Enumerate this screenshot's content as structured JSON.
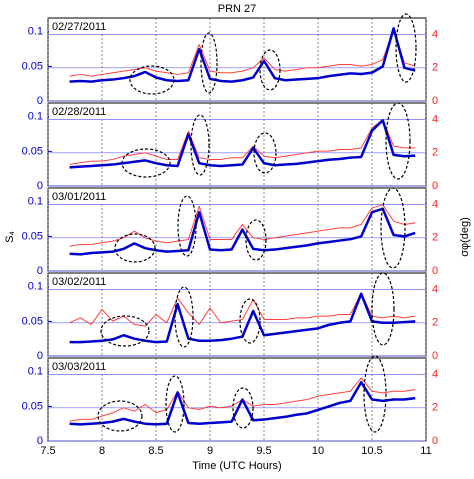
{
  "title": "PRN 27",
  "xlabel": "Time (UTC Hours)",
  "ylabel": "S₄",
  "y2label": "σφ(deg)",
  "chart_data": [
    {
      "type": "line",
      "annotation": "02/27/2011",
      "x": [
        7.7,
        7.8,
        7.9,
        8.0,
        8.1,
        8.2,
        8.3,
        8.4,
        8.5,
        8.6,
        8.7,
        8.8,
        8.9,
        9.0,
        9.1,
        9.2,
        9.3,
        9.4,
        9.5,
        9.6,
        9.7,
        9.8,
        9.9,
        10.0,
        10.1,
        10.2,
        10.3,
        10.4,
        10.5,
        10.6,
        10.7,
        10.8,
        10.9
      ],
      "series": [
        {
          "color": "#ff4040",
          "axis": "y2",
          "values": [
            1.5,
            1.6,
            1.5,
            1.6,
            1.7,
            1.8,
            1.9,
            2.0,
            1.8,
            1.7,
            1.6,
            1.7,
            3.4,
            1.8,
            1.7,
            1.7,
            1.8,
            2.0,
            2.6,
            1.9,
            1.8,
            1.9,
            2.0,
            2.0,
            2.1,
            2.2,
            2.2,
            2.1,
            2.2,
            2.5,
            4.3,
            2.3,
            2.1
          ]
        },
        {
          "color": "#0000cc",
          "values": [
            0.028,
            0.029,
            0.028,
            0.03,
            0.031,
            0.033,
            0.036,
            0.042,
            0.034,
            0.03,
            0.029,
            0.03,
            0.075,
            0.032,
            0.029,
            0.028,
            0.03,
            0.034,
            0.058,
            0.033,
            0.03,
            0.031,
            0.032,
            0.033,
            0.036,
            0.038,
            0.04,
            0.039,
            0.041,
            0.05,
            0.105,
            0.048,
            0.044
          ]
        }
      ],
      "xlim": [
        7.5,
        11
      ],
      "xticks": [
        7.5,
        8,
        8.5,
        9,
        9.5,
        10,
        10.5,
        11
      ],
      "ylim": [
        0,
        0.12
      ],
      "yticks": [
        0,
        0.05,
        0.1
      ],
      "y2lim": [
        0,
        5
      ],
      "y2ticks": [
        0,
        2,
        4
      ]
    },
    {
      "type": "line",
      "annotation": "02/28/2011",
      "x": [
        7.7,
        7.8,
        7.9,
        8.0,
        8.1,
        8.2,
        8.3,
        8.4,
        8.5,
        8.6,
        8.7,
        8.8,
        8.9,
        9.0,
        9.1,
        9.2,
        9.3,
        9.4,
        9.5,
        9.6,
        9.7,
        9.8,
        9.9,
        10.0,
        10.1,
        10.2,
        10.3,
        10.4,
        10.5,
        10.6,
        10.7,
        10.8,
        10.9
      ],
      "series": [
        {
          "color": "#ff4040",
          "axis": "y2",
          "values": [
            1.3,
            1.4,
            1.5,
            1.5,
            1.6,
            1.8,
            1.9,
            2.0,
            1.8,
            1.6,
            1.6,
            3.3,
            1.7,
            1.6,
            1.6,
            1.7,
            1.7,
            2.4,
            1.8,
            1.7,
            1.8,
            1.9,
            2.0,
            2.1,
            2.1,
            2.2,
            2.2,
            2.3,
            3.5,
            4.0,
            2.4,
            2.3,
            2.3
          ]
        },
        {
          "color": "#0000cc",
          "values": [
            0.027,
            0.028,
            0.029,
            0.03,
            0.031,
            0.033,
            0.035,
            0.037,
            0.033,
            0.03,
            0.029,
            0.075,
            0.033,
            0.03,
            0.029,
            0.03,
            0.031,
            0.055,
            0.033,
            0.03,
            0.031,
            0.032,
            0.034,
            0.036,
            0.038,
            0.039,
            0.041,
            0.042,
            0.08,
            0.095,
            0.045,
            0.043,
            0.044
          ]
        }
      ],
      "xlim": [
        7.5,
        11
      ],
      "xticks": [
        7.5,
        8,
        8.5,
        9,
        9.5,
        10,
        10.5,
        11
      ],
      "ylim": [
        0,
        0.12
      ],
      "yticks": [
        0,
        0.05,
        0.1
      ],
      "y2lim": [
        0,
        5
      ],
      "y2ticks": [
        0,
        2,
        4
      ]
    },
    {
      "type": "line",
      "annotation": "03/01/2011",
      "x": [
        7.7,
        7.8,
        7.9,
        8.0,
        8.1,
        8.2,
        8.3,
        8.4,
        8.5,
        8.6,
        8.7,
        8.8,
        8.9,
        9.0,
        9.1,
        9.2,
        9.3,
        9.4,
        9.5,
        9.6,
        9.7,
        9.8,
        9.9,
        10.0,
        10.1,
        10.2,
        10.3,
        10.4,
        10.5,
        10.6,
        10.7,
        10.8,
        10.9
      ],
      "series": [
        {
          "color": "#ff4040",
          "axis": "y2",
          "values": [
            1.5,
            1.6,
            1.6,
            1.7,
            1.8,
            2.0,
            2.4,
            2.0,
            1.8,
            1.7,
            1.8,
            1.9,
            3.9,
            1.9,
            1.9,
            1.9,
            2.8,
            2.0,
            1.9,
            2.0,
            2.1,
            2.2,
            2.3,
            2.4,
            2.5,
            2.6,
            2.6,
            2.8,
            3.8,
            4.0,
            3.0,
            2.8,
            2.9
          ]
        },
        {
          "color": "#0000cc",
          "values": [
            0.025,
            0.024,
            0.026,
            0.027,
            0.028,
            0.032,
            0.04,
            0.033,
            0.03,
            0.028,
            0.029,
            0.03,
            0.085,
            0.031,
            0.03,
            0.031,
            0.06,
            0.032,
            0.03,
            0.031,
            0.033,
            0.035,
            0.037,
            0.04,
            0.042,
            0.044,
            0.046,
            0.05,
            0.085,
            0.09,
            0.052,
            0.05,
            0.055
          ]
        }
      ],
      "xlim": [
        7.5,
        11
      ],
      "xticks": [
        7.5,
        8,
        8.5,
        9,
        9.5,
        10,
        10.5,
        11
      ],
      "ylim": [
        0,
        0.12
      ],
      "yticks": [
        0,
        0.05,
        0.1
      ],
      "y2lim": [
        0,
        5
      ],
      "y2ticks": [
        0,
        2,
        4
      ]
    },
    {
      "type": "line",
      "annotation": "03/02/2011",
      "x": [
        7.7,
        7.8,
        7.9,
        8.0,
        8.1,
        8.2,
        8.3,
        8.4,
        8.5,
        8.6,
        8.7,
        8.8,
        8.9,
        9.0,
        9.1,
        9.2,
        9.3,
        9.4,
        9.5,
        9.6,
        9.7,
        9.8,
        9.9,
        10.0,
        10.1,
        10.2,
        10.3,
        10.4,
        10.5,
        10.6,
        10.7,
        10.8,
        10.9
      ],
      "series": [
        {
          "color": "#ff4040",
          "axis": "y2",
          "values": [
            2.0,
            2.3,
            1.9,
            2.8,
            2.1,
            2.4,
            1.9,
            1.8,
            2.5,
            2.0,
            3.5,
            2.6,
            1.9,
            2.9,
            2.0,
            2.1,
            2.2,
            3.4,
            2.2,
            2.2,
            2.2,
            2.3,
            2.3,
            2.4,
            2.4,
            2.5,
            2.5,
            3.8,
            2.4,
            2.3,
            2.4,
            2.3,
            2.4
          ]
        },
        {
          "color": "#0000cc",
          "values": [
            0.02,
            0.02,
            0.021,
            0.022,
            0.024,
            0.03,
            0.025,
            0.022,
            0.02,
            0.021,
            0.075,
            0.025,
            0.022,
            0.022,
            0.023,
            0.025,
            0.028,
            0.065,
            0.03,
            0.032,
            0.034,
            0.036,
            0.038,
            0.04,
            0.045,
            0.048,
            0.05,
            0.09,
            0.05,
            0.048,
            0.048,
            0.049,
            0.05
          ]
        }
      ],
      "xlim": [
        7.5,
        11
      ],
      "xticks": [
        7.5,
        8,
        8.5,
        9,
        9.5,
        10,
        10.5,
        11
      ],
      "ylim": [
        0,
        0.12
      ],
      "yticks": [
        0,
        0.05,
        0.1
      ],
      "y2lim": [
        0,
        5
      ],
      "y2ticks": [
        0,
        2,
        4
      ]
    },
    {
      "type": "line",
      "annotation": "03/03/2011",
      "x": [
        7.7,
        7.8,
        7.9,
        8.0,
        8.1,
        8.2,
        8.3,
        8.4,
        8.5,
        8.6,
        8.7,
        8.8,
        8.9,
        9.0,
        9.1,
        9.2,
        9.3,
        9.4,
        9.5,
        9.6,
        9.7,
        9.8,
        9.9,
        10.0,
        10.1,
        10.2,
        10.3,
        10.4,
        10.5,
        10.6,
        10.7,
        10.8,
        10.9
      ],
      "series": [
        {
          "color": "#ff4040",
          "axis": "y2",
          "values": [
            1.2,
            1.3,
            1.3,
            1.5,
            1.7,
            2.0,
            1.8,
            2.2,
            1.7,
            1.9,
            3.0,
            2.0,
            1.9,
            2.1,
            2.0,
            2.1,
            2.5,
            2.1,
            2.2,
            2.2,
            2.3,
            2.4,
            2.5,
            2.7,
            2.8,
            2.9,
            3.0,
            3.8,
            3.0,
            2.9,
            3.0,
            3.0,
            3.1
          ]
        },
        {
          "color": "#0000cc",
          "values": [
            0.025,
            0.024,
            0.025,
            0.026,
            0.028,
            0.032,
            0.028,
            0.025,
            0.024,
            0.025,
            0.07,
            0.026,
            0.025,
            0.026,
            0.027,
            0.028,
            0.06,
            0.03,
            0.031,
            0.033,
            0.035,
            0.038,
            0.04,
            0.045,
            0.05,
            0.055,
            0.058,
            0.085,
            0.06,
            0.058,
            0.06,
            0.06,
            0.062
          ]
        }
      ],
      "xlim": [
        7.5,
        11
      ],
      "xticks": [
        7.5,
        8,
        8.5,
        9,
        9.5,
        10,
        10.5,
        11
      ],
      "ylim": [
        0,
        0.12
      ],
      "yticks": [
        0,
        0.05,
        0.1
      ],
      "y2lim": [
        0,
        5
      ],
      "y2ticks": [
        0,
        2,
        4
      ]
    }
  ]
}
